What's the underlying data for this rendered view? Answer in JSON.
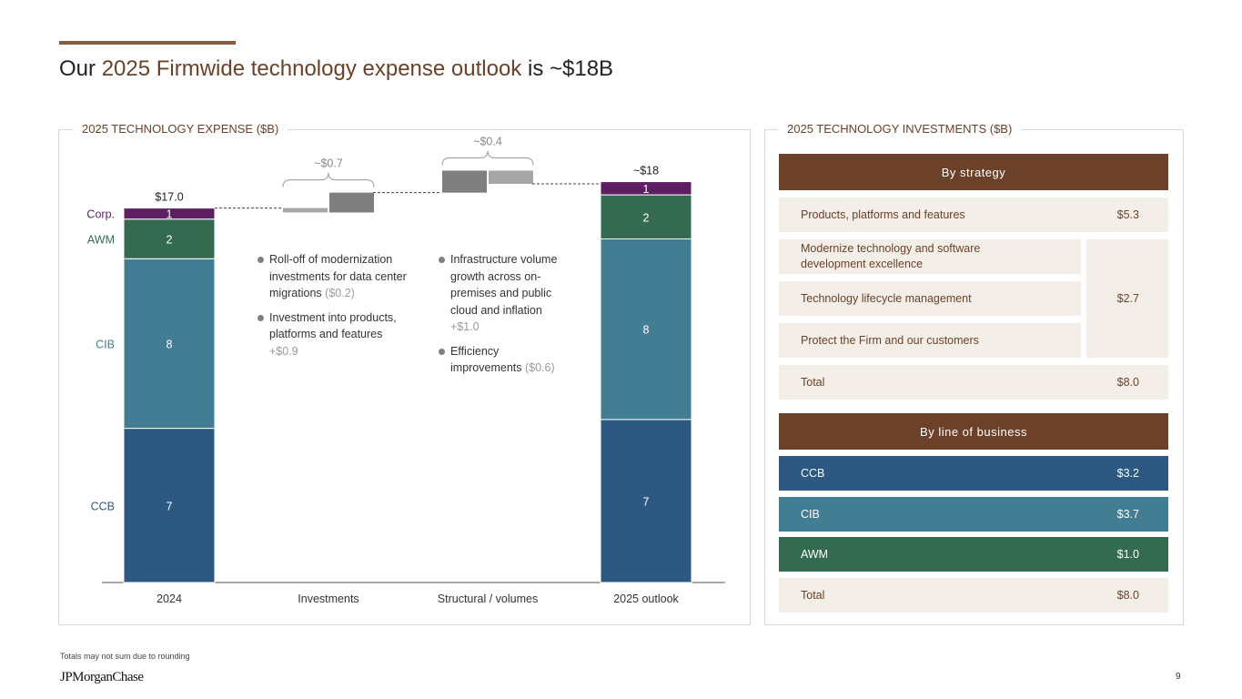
{
  "title": {
    "pre": "Our ",
    "highlight": "2025 Firmwide technology expense outlook",
    "post": " is ~$18B"
  },
  "left_panel": {
    "title": "2025 TECHNOLOGY EXPENSE ($B)"
  },
  "right_panel": {
    "title": "2025 TECHNOLOGY INVESTMENTS ($B)"
  },
  "notes": {
    "investments": [
      {
        "text": "Roll-off of modernization investments for data center migrations",
        "amount": "($0.2)"
      },
      {
        "text": "Investment into products, platforms and features",
        "amount": "+$0.9"
      }
    ],
    "structural": [
      {
        "text": "Infrastructure volume growth across on-premises and public cloud and inflation",
        "amount": "+$1.0"
      },
      {
        "text": "Efficiency improvements",
        "amount": "($0.6)"
      }
    ]
  },
  "chart_data": {
    "type": "waterfall-stacked-bar",
    "title": "2025 TECHNOLOGY EXPENSE ($B)",
    "categories": [
      "2024",
      "Investments",
      "Structural / volumes",
      "2025 outlook"
    ],
    "segment_colors": {
      "CCB": "#2c5882",
      "CIB": "#437d93",
      "AWM": "#336a50",
      "Corp.": "#5e1f62"
    },
    "stacks": [
      {
        "category": "2024",
        "total_label": "$17.0",
        "segments": [
          {
            "name": "CCB",
            "value": 7.0,
            "label": "7"
          },
          {
            "name": "CIB",
            "value": 7.7,
            "label": "8"
          },
          {
            "name": "AWM",
            "value": 1.8,
            "label": "2"
          },
          {
            "name": "Corp.",
            "value": 0.5,
            "label": "1"
          }
        ]
      },
      {
        "category": "2025 outlook",
        "total_label": "~$18",
        "segments": [
          {
            "name": "CCB",
            "value": 7.4,
            "label": "7"
          },
          {
            "name": "CIB",
            "value": 8.2,
            "label": "8"
          },
          {
            "name": "AWM",
            "value": 2.0,
            "label": "2"
          },
          {
            "name": "Corp.",
            "value": 0.6,
            "label": "1"
          }
        ]
      }
    ],
    "steps": [
      {
        "category": "Investments",
        "net_label": "~$0.7",
        "changes": [
          {
            "name": "Roll-off of modernization",
            "value": -0.2
          },
          {
            "name": "Investment into products",
            "value": 0.9
          }
        ]
      },
      {
        "category": "Structural / volumes",
        "net_label": "~$0.4",
        "changes": [
          {
            "name": "Infrastructure volume growth",
            "value": 1.0
          },
          {
            "name": "Efficiency improvements",
            "value": -0.6
          }
        ]
      }
    ],
    "start_value": 17.0,
    "ylim": [
      0,
      18.5
    ]
  },
  "strategy": {
    "header": "By strategy",
    "rows": [
      {
        "label": "Products, platforms and features",
        "value": "$5.3"
      },
      {
        "label": "Modernize technology and software development excellence"
      },
      {
        "label": "Technology lifecycle management"
      },
      {
        "label": "Protect the Firm and our customers"
      }
    ],
    "merged_value": "$2.7",
    "total": {
      "label": "Total",
      "value": "$8.0"
    }
  },
  "lob": {
    "header": "By line of business",
    "rows": [
      {
        "label": "CCB",
        "value": "$3.2",
        "color": "#2c5882"
      },
      {
        "label": "CIB",
        "value": "$3.7",
        "color": "#437d93"
      },
      {
        "label": "AWM",
        "value": "$1.0",
        "color": "#336a50"
      }
    ],
    "total": {
      "label": "Total",
      "value": "$8.0"
    }
  },
  "footnote": "Totals may not sum due to rounding",
  "logo": "JPMorganChase",
  "page_number": "9"
}
